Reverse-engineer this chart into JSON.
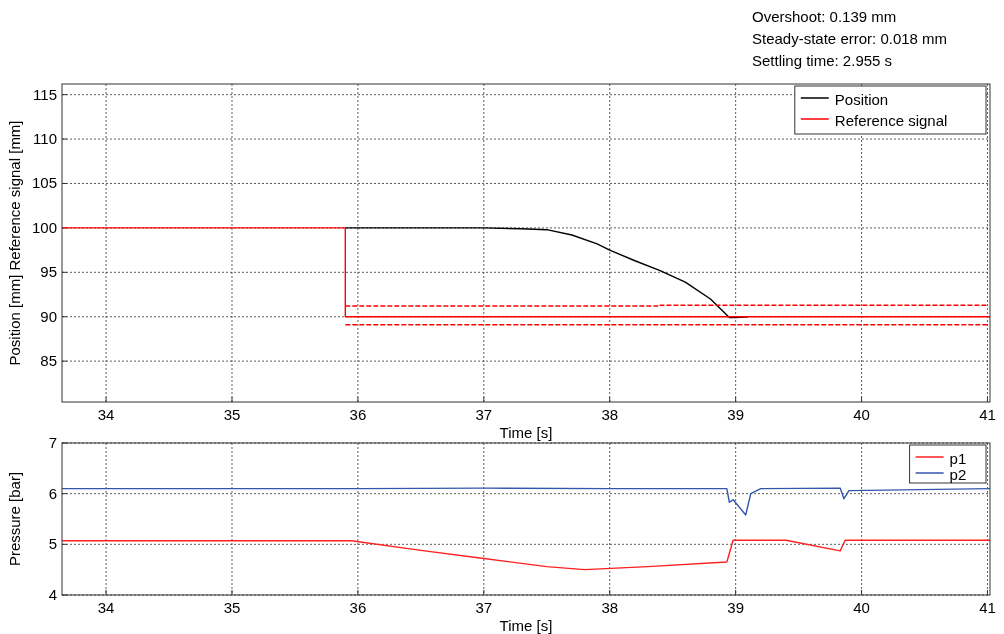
{
  "chart_data": [
    {
      "type": "line",
      "xlabel": "Time [s]",
      "ylabel": "Position [mm] Reference signal [mm]",
      "xlim": [
        33.65,
        41.02
      ],
      "ylim": [
        80.4,
        116.2
      ],
      "xticks": [
        34,
        35,
        36,
        37,
        38,
        39,
        40,
        41
      ],
      "yticks": [
        85,
        90,
        95,
        100,
        105,
        110,
        115
      ],
      "grid": true,
      "legend": "top right",
      "annotations": [
        "Overshoot: 0.139 mm",
        "Steady-state error: 0.018 mm",
        "Settling time: 2.955 s"
      ],
      "series": [
        {
          "name": "Position",
          "color": "#000000",
          "x": [
            35.9,
            36.5,
            37.0,
            37.3,
            37.5,
            37.7,
            37.9,
            38.0,
            38.2,
            38.4,
            38.6,
            38.8,
            38.95,
            39.0,
            39.1
          ],
          "values": [
            100,
            100,
            100,
            99.9,
            99.8,
            99.2,
            98.2,
            97.5,
            96.3,
            95.2,
            93.9,
            92.0,
            89.9,
            89.9,
            90.0
          ]
        },
        {
          "name": "Reference signal",
          "color": "#ff0000",
          "x": [
            33.65,
            35.9,
            35.9,
            41.02
          ],
          "values": [
            100,
            100,
            90,
            90
          ]
        },
        {
          "color": "#ff0000",
          "line_style": "dashed",
          "x": [
            35.9,
            38.4,
            38.4,
            41.0
          ],
          "values": [
            91.2,
            91.2,
            91.3,
            91.3
          ]
        },
        {
          "color": "#ff0000",
          "line_style": "dashed",
          "x": [
            35.9,
            41.0
          ],
          "values": [
            89.1,
            89.1
          ]
        }
      ]
    },
    {
      "type": "line",
      "xlabel": "Time [s]",
      "ylabel": "Pressure [bar]",
      "xlim": [
        33.65,
        41.02
      ],
      "ylim": [
        4,
        7
      ],
      "xticks": [
        34,
        35,
        36,
        37,
        38,
        39,
        40,
        41
      ],
      "yticks": [
        4,
        5,
        6,
        7
      ],
      "grid": true,
      "legend": "top right",
      "series": [
        {
          "name": "p1",
          "color": "#ff2020",
          "x": [
            33.65,
            35.95,
            36.5,
            37.0,
            37.5,
            37.8,
            38.3,
            38.93,
            38.98,
            39.4,
            39.83,
            39.87,
            41.02
          ],
          "values": [
            5.07,
            5.07,
            4.88,
            4.72,
            4.56,
            4.5,
            4.56,
            4.65,
            5.08,
            5.08,
            4.87,
            5.08,
            5.08
          ]
        },
        {
          "name": "p2",
          "color": "#3355aa",
          "x": [
            33.65,
            36.0,
            37.0,
            38.0,
            38.93,
            38.95,
            38.98,
            39.08,
            39.12,
            39.2,
            39.83,
            39.86,
            39.9,
            41.02
          ],
          "values": [
            6.1,
            6.1,
            6.11,
            6.1,
            6.1,
            5.83,
            5.88,
            5.58,
            6.0,
            6.1,
            6.11,
            5.9,
            6.06,
            6.1
          ]
        }
      ]
    }
  ]
}
